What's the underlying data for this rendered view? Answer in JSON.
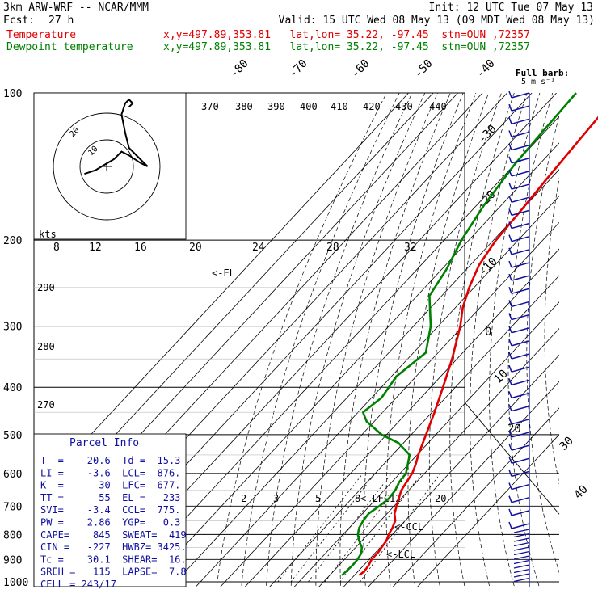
{
  "header": {
    "model": "3km ARW-WRF -- NCAR/MMM",
    "init": "Init: 12 UTC Tue 07 May 13",
    "fcst_label": "Fcst:",
    "fcst_value": "27 h",
    "valid": "Valid: 15 UTC Wed 08 May 13 (09 MDT Wed 08 May 13)",
    "temp_label": "Temperature",
    "temp_info": "x,y=497.89,353.81   lat,lon= 35.22, -97.45  stn=OUN ,72357",
    "dew_label": "Dewpoint temperature",
    "dew_info": "x,y=497.89,353.81   lat,lon= 35.22, -97.45  stn=OUN ,72357"
  },
  "colors": {
    "temperature": "#e00000",
    "dewpoint": "#008000",
    "wind": "#1010a0"
  },
  "wind_barb_title": "Full barb:",
  "wind_barb_unit": "5 m s⁻¹",
  "parcel_info": {
    "title": "Parcel Info",
    "rows": [
      "T  =    20.6  Td =  15.3",
      "LI =    -3.6  LCL=  876.",
      "K  =      30  LFC=  677.",
      "TT =      55  EL =   233",
      "SVI=    -3.4  CCL=  775.",
      "PW =    2.86  YGP=   0.3",
      "CAPE=    845  SWEAT=  419",
      "CIN =   -227  HWBZ= 3425.",
      "Tc =    30.1  SHEAR=  16.",
      "SREH =   115  LAPSE=  7.8",
      "CELL = 243/17"
    ]
  },
  "hodograph": {
    "speed_label": "kts",
    "rings": [
      "10",
      "20"
    ]
  },
  "level_labels": [
    {
      "text": "<-EL"
    },
    {
      "text": "<-LFC"
    },
    {
      "text": "<-CCL"
    },
    {
      "text": "<-LCL"
    }
  ],
  "chart_data": {
    "type": "line",
    "title": "",
    "y_axis": {
      "label": "",
      "scale": "log-pressure",
      "range_hPa": [
        1000,
        100
      ],
      "ticks": [
        "100",
        "200",
        "300",
        "400",
        "500",
        "600",
        "700",
        "800",
        "900",
        "1000"
      ]
    },
    "isotherm_labels": [
      "-80",
      "-70",
      "-60",
      "-50",
      "-40",
      "-30",
      "-20",
      "-10",
      "0",
      "10",
      "20",
      "30",
      "40"
    ],
    "theta_labels": [
      "370",
      "380",
      "390",
      "400",
      "410",
      "420",
      "430",
      "440",
      "290",
      "280",
      "270"
    ],
    "mixing_ratio_labels": [
      "2",
      "3",
      "5",
      "8",
      "12",
      "20"
    ],
    "hodo_speed_labels": [
      "8",
      "12",
      "16",
      "20",
      "24",
      "28",
      "32"
    ],
    "series": [
      {
        "name": "Temperature",
        "color": "#e00000",
        "points": [
          [
            970,
            22.0
          ],
          [
            950,
            22.5
          ],
          [
            925,
            22.0
          ],
          [
            900,
            21.0
          ],
          [
            870,
            21.0
          ],
          [
            850,
            20.5
          ],
          [
            825,
            20.0
          ],
          [
            800,
            18.5
          ],
          [
            775,
            17.5
          ],
          [
            750,
            16.0
          ],
          [
            725,
            13.0
          ],
          [
            700,
            11.0
          ],
          [
            675,
            9.0
          ],
          [
            650,
            7.0
          ],
          [
            625,
            6.0
          ],
          [
            600,
            5.0
          ],
          [
            575,
            3.0
          ],
          [
            550,
            0.5
          ],
          [
            500,
            -4.0
          ],
          [
            450,
            -9.0
          ],
          [
            400,
            -15.0
          ],
          [
            350,
            -22.0
          ],
          [
            300,
            -31.0
          ],
          [
            275,
            -37.0
          ],
          [
            250,
            -42.0
          ],
          [
            225,
            -46.5
          ],
          [
            210,
            -48.0
          ],
          [
            200,
            -49.0
          ],
          [
            175,
            -50.0
          ],
          [
            150,
            -51.5
          ],
          [
            125,
            -53.0
          ],
          [
            110,
            -54.0
          ],
          [
            100,
            -55.0
          ]
        ]
      },
      {
        "name": "Dewpoint temperature",
        "color": "#008000",
        "points": [
          [
            970,
            15.0
          ],
          [
            950,
            15.2
          ],
          [
            925,
            15.5
          ],
          [
            900,
            15.3
          ],
          [
            875,
            14.5
          ],
          [
            850,
            12.5
          ],
          [
            825,
            9.0
          ],
          [
            800,
            6.0
          ],
          [
            775,
            4.0
          ],
          [
            750,
            3.0
          ],
          [
            725,
            2.5
          ],
          [
            700,
            4.0
          ],
          [
            675,
            5.0
          ],
          [
            650,
            4.5
          ],
          [
            625,
            3.0
          ],
          [
            600,
            2.5
          ],
          [
            550,
            -3.0
          ],
          [
            520,
            -12.0
          ],
          [
            500,
            -22.0
          ],
          [
            470,
            -33.0
          ],
          [
            450,
            -38.0
          ],
          [
            420,
            -36.0
          ],
          [
            380,
            -38.0
          ],
          [
            340,
            -35.0
          ],
          [
            300,
            -43.0
          ],
          [
            260,
            -55.0
          ],
          [
            230,
            -58.0
          ],
          [
            200,
            -63.0
          ],
          [
            170,
            -67.0
          ],
          [
            140,
            -70.0
          ],
          [
            120,
            -71.0
          ],
          [
            100,
            -72.0
          ]
        ]
      }
    ],
    "hodograph_trace": [
      [
        -6,
        -2
      ],
      [
        -3,
        -1
      ],
      [
        2,
        2
      ],
      [
        4,
        4
      ],
      [
        6,
        3
      ],
      [
        9,
        1
      ],
      [
        11,
        0
      ],
      [
        6,
        5
      ],
      [
        5,
        9
      ],
      [
        4,
        14
      ],
      [
        5,
        17
      ],
      [
        6,
        18
      ],
      [
        7,
        17
      ],
      [
        6,
        16
      ]
    ],
    "wind_barbs_count": 34
  }
}
